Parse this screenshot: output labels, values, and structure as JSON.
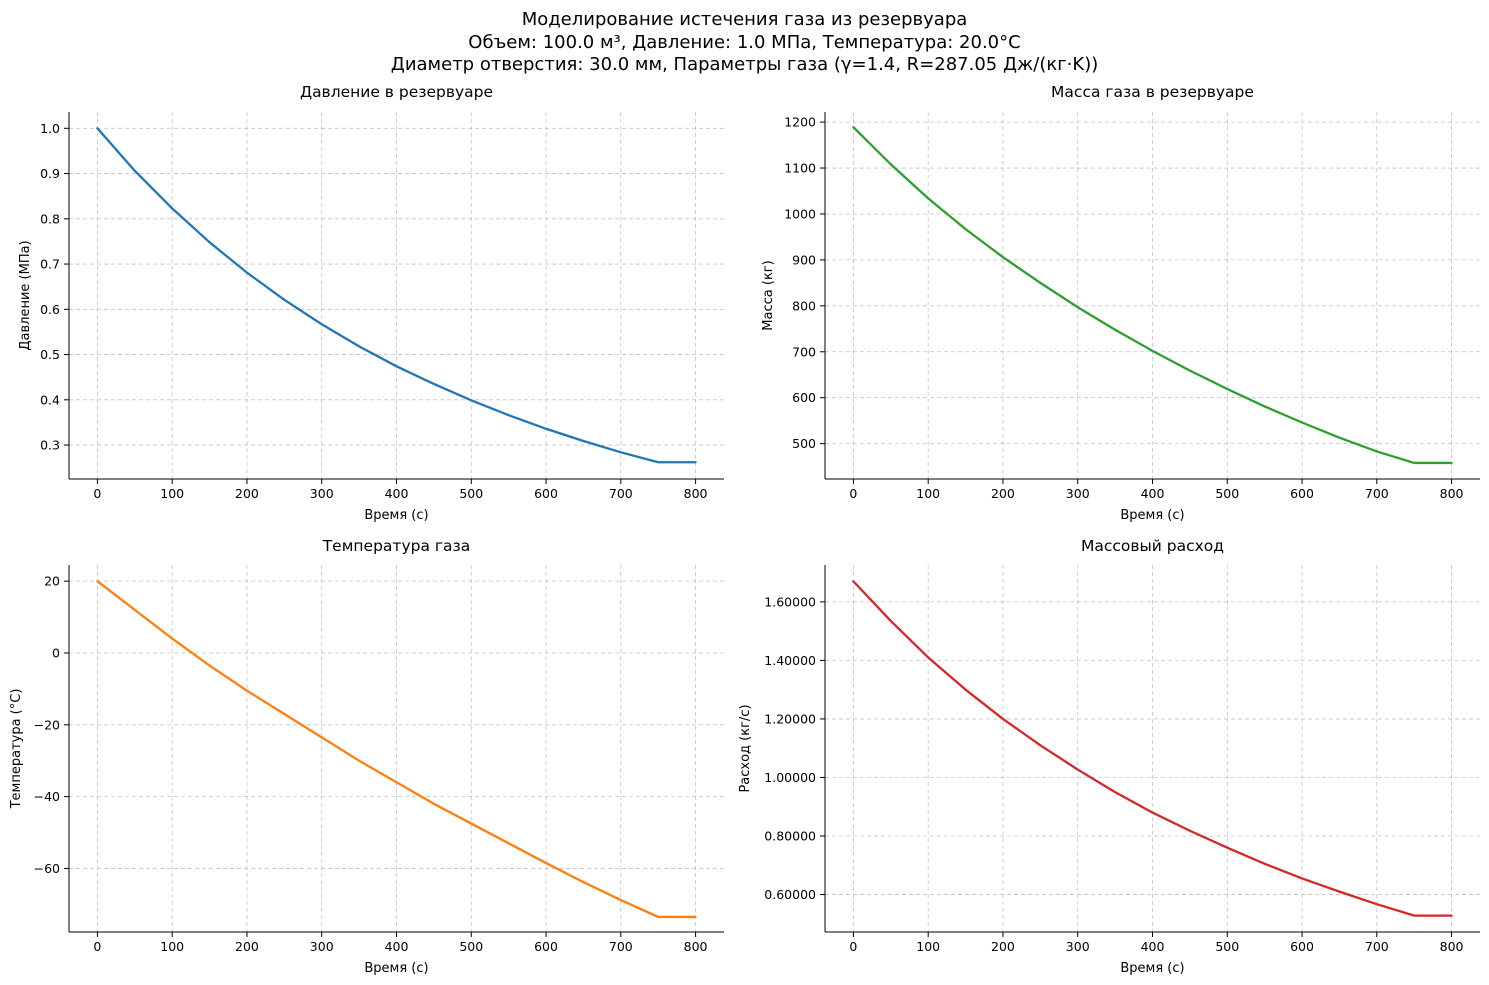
{
  "figure": {
    "title_lines": [
      "Моделирование истечения газа из резервуара",
      "Объем: 100.0 м³, Давление: 1.0 МПа, Температура: 20.0°C",
      "Диаметр отверстия: 30.0 мм, Параметры газа (γ=1.4, R=287.05 Дж/(кг·K))"
    ]
  },
  "chart_data": [
    {
      "type": "line",
      "title": "Давление в резервуаре",
      "xlabel": "Время (с)",
      "ylabel": "Давление (МПа)",
      "color": "#1f77b4",
      "xlim": [
        -38,
        838
      ],
      "ylim": [
        0.225,
        1.036
      ],
      "xticks": [
        0,
        100,
        200,
        300,
        400,
        500,
        600,
        700,
        800
      ],
      "xtick_labels": [
        "0",
        "100",
        "200",
        "300",
        "400",
        "500",
        "600",
        "700",
        "800"
      ],
      "yticks": [
        0.3,
        0.4,
        0.5,
        0.6,
        0.7,
        0.8,
        0.9,
        1.0
      ],
      "ytick_labels": [
        "0.3",
        "0.4",
        "0.5",
        "0.6",
        "0.7",
        "0.8",
        "0.9",
        "1.0"
      ],
      "grid": true,
      "x": [
        0,
        50,
        100,
        150,
        200,
        250,
        300,
        350,
        400,
        450,
        500,
        550,
        600,
        650,
        700,
        750,
        800
      ],
      "y": [
        1.0,
        0.906,
        0.823,
        0.748,
        0.681,
        0.621,
        0.567,
        0.518,
        0.474,
        0.435,
        0.399,
        0.366,
        0.336,
        0.309,
        0.284,
        0.262,
        0.262
      ]
    },
    {
      "type": "line",
      "title": "Масса газа в резервуаре",
      "xlabel": "Время (с)",
      "ylabel": "Масса (кг)",
      "color": "#2ca02c",
      "xlim": [
        -38,
        838
      ],
      "ylim": [
        423,
        1222
      ],
      "xticks": [
        0,
        100,
        200,
        300,
        400,
        500,
        600,
        700,
        800
      ],
      "xtick_labels": [
        "0",
        "100",
        "200",
        "300",
        "400",
        "500",
        "600",
        "700",
        "800"
      ],
      "yticks": [
        500,
        600,
        700,
        800,
        900,
        1000,
        1100,
        1200
      ],
      "ytick_labels": [
        "500",
        "600",
        "700",
        "800",
        "900",
        "1000",
        "1100",
        "1200"
      ],
      "grid": true,
      "x": [
        0,
        50,
        100,
        150,
        200,
        250,
        300,
        350,
        400,
        450,
        500,
        550,
        600,
        650,
        700,
        750,
        800
      ],
      "y": [
        1189,
        1108,
        1034,
        967,
        906,
        850,
        797,
        748,
        702,
        659,
        619,
        581,
        546,
        513,
        483,
        458,
        458
      ]
    },
    {
      "type": "line",
      "title": "Температура газа",
      "xlabel": "Время (с)",
      "ylabel": "Температура (°C)",
      "color": "#ff7f0e",
      "xlim": [
        -38,
        838
      ],
      "ylim": [
        -77.7,
        24.5
      ],
      "xticks": [
        0,
        100,
        200,
        300,
        400,
        500,
        600,
        700,
        800
      ],
      "xtick_labels": [
        "0",
        "100",
        "200",
        "300",
        "400",
        "500",
        "600",
        "700",
        "800"
      ],
      "yticks": [
        -60,
        -40,
        -20,
        0,
        20
      ],
      "ytick_labels": [
        "−60",
        "−40",
        "−20",
        "0",
        "20"
      ],
      "grid": true,
      "x": [
        0,
        50,
        100,
        150,
        200,
        250,
        300,
        350,
        400,
        450,
        500,
        550,
        600,
        650,
        700,
        750,
        800
      ],
      "y": [
        20,
        12,
        4,
        -3.5,
        -10.5,
        -17,
        -23.5,
        -30,
        -36,
        -42,
        -47.5,
        -53,
        -58.5,
        -63.8,
        -68.8,
        -73.5,
        -73.5
      ]
    },
    {
      "type": "line",
      "title": "Массовый расход",
      "xlabel": "Время (с)",
      "ylabel": "Расход (кг/с)",
      "color": "#d62728",
      "xlim": [
        -38,
        838
      ],
      "ylim": [
        0.472,
        1.726
      ],
      "xticks": [
        0,
        100,
        200,
        300,
        400,
        500,
        600,
        700,
        800
      ],
      "xtick_labels": [
        "0",
        "100",
        "200",
        "300",
        "400",
        "500",
        "600",
        "700",
        "800"
      ],
      "yticks": [
        0.6,
        0.8,
        1.0,
        1.2,
        1.4,
        1.6
      ],
      "ytick_labels": [
        "0.60000",
        "0.80000",
        "1.00000",
        "1.20000",
        "1.40000",
        "1.60000"
      ],
      "grid": true,
      "x": [
        0,
        50,
        100,
        150,
        200,
        250,
        300,
        350,
        400,
        450,
        500,
        550,
        600,
        650,
        700,
        750,
        800
      ],
      "y": [
        1.67,
        1.535,
        1.41,
        1.3,
        1.2,
        1.11,
        1.027,
        0.95,
        0.88,
        0.818,
        0.76,
        0.705,
        0.655,
        0.61,
        0.567,
        0.528,
        0.528
      ]
    }
  ]
}
